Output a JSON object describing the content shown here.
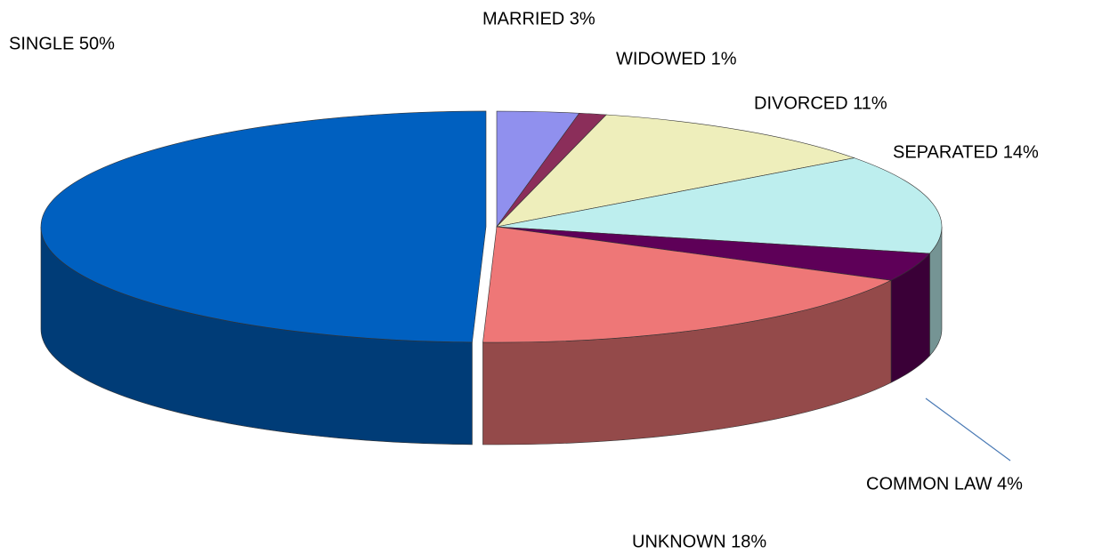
{
  "chart_data": {
    "type": "pie3d",
    "categories": [
      "SINGLE",
      "MARRIED",
      "WIDOWED",
      "DIVORCED",
      "SEPARATED",
      "COMMON LAW",
      "UNKNOWN"
    ],
    "values": [
      50,
      3,
      1,
      11,
      14,
      4,
      18
    ],
    "value_labels": [
      "SINGLE 50%",
      "MARRIED 3%",
      "WIDOWED 1%",
      "DIVORCED 11%",
      "SEPARATED 14%",
      "COMMON LAW 4%",
      "UNKNOWN 18%"
    ],
    "colors": [
      "#0060c0",
      "#9090ee",
      "#8b2e5a",
      "#eeeebb",
      "#bdeeee",
      "#5e0058",
      "#ee7777"
    ]
  }
}
